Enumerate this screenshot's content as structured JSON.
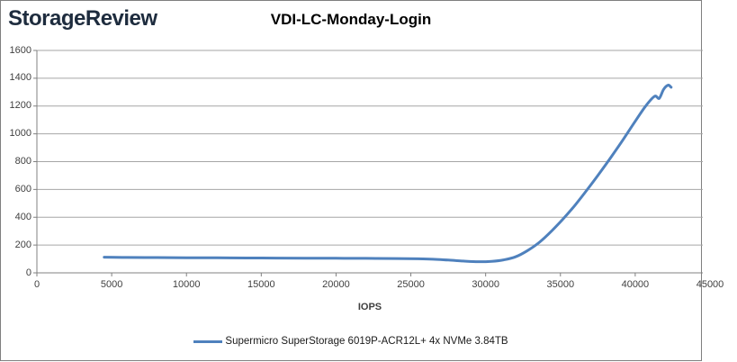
{
  "header": {
    "logo": "StorageReview",
    "title": "VDI-LC-Monday-Login"
  },
  "chart_data": {
    "type": "line",
    "title": "VDI-LC-Monday-Login",
    "xlabel": "IOPS",
    "ylabel": "",
    "xlim": [
      0,
      45000
    ],
    "ylim": [
      0,
      1600
    ],
    "xticks": [
      0,
      5000,
      10000,
      15000,
      20000,
      25000,
      30000,
      35000,
      40000,
      45000
    ],
    "yticks": [
      0,
      200,
      400,
      600,
      800,
      1000,
      1200,
      1400,
      1600
    ],
    "grid": "horizontal",
    "legend_position": "bottom",
    "colors": {
      "line": "#4f81bd",
      "grid": "#a6a6a6",
      "axis": "#808080",
      "text": "#3f3f3f"
    },
    "series": [
      {
        "name": "Supermicro SuperStorage 6019P-ACR12L+ 4x NVMe 3.84TB",
        "points": [
          [
            4500,
            113
          ],
          [
            6000,
            111
          ],
          [
            8000,
            110
          ],
          [
            10000,
            109
          ],
          [
            12000,
            108
          ],
          [
            14000,
            107
          ],
          [
            16000,
            106
          ],
          [
            18000,
            105
          ],
          [
            20000,
            105
          ],
          [
            22000,
            104
          ],
          [
            24000,
            103
          ],
          [
            25500,
            101
          ],
          [
            26500,
            98
          ],
          [
            27500,
            92
          ],
          [
            28500,
            85
          ],
          [
            29500,
            80
          ],
          [
            30400,
            83
          ],
          [
            31200,
            93
          ],
          [
            32000,
            115
          ],
          [
            32800,
            160
          ],
          [
            33600,
            220
          ],
          [
            34400,
            300
          ],
          [
            35200,
            390
          ],
          [
            36000,
            490
          ],
          [
            36800,
            600
          ],
          [
            37600,
            715
          ],
          [
            38400,
            835
          ],
          [
            39200,
            960
          ],
          [
            40000,
            1090
          ],
          [
            40700,
            1200
          ],
          [
            41300,
            1270
          ],
          [
            41600,
            1255
          ],
          [
            41900,
            1320
          ],
          [
            42200,
            1350
          ],
          [
            42400,
            1335
          ]
        ]
      }
    ]
  }
}
